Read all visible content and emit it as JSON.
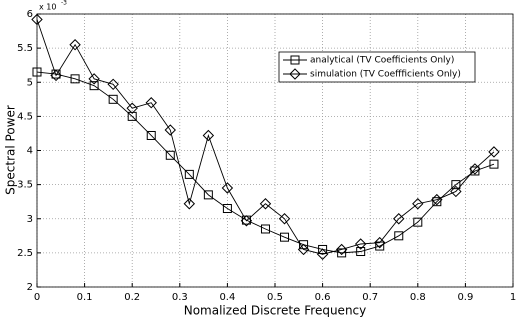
{
  "chart_data": {
    "type": "line",
    "x_label": "Nomalized Discrete Frequency",
    "y_label": "Spectral Power",
    "y_multiplier": {
      "base": "x 10",
      "exponent": "-3"
    },
    "x": [
      0,
      0.04,
      0.08,
      0.12,
      0.16,
      0.2,
      0.24,
      0.28,
      0.32,
      0.36,
      0.4,
      0.44,
      0.48,
      0.52,
      0.56,
      0.6,
      0.64,
      0.68,
      0.72,
      0.76,
      0.8,
      0.84,
      0.88,
      0.92,
      0.96
    ],
    "series": [
      {
        "name": "analytical (TV Coefficients Only)",
        "color": "#000000",
        "marker": "square",
        "values": [
          5.15,
          5.12,
          5.05,
          4.95,
          4.75,
          4.5,
          4.22,
          3.93,
          3.65,
          3.35,
          3.15,
          2.98,
          2.85,
          2.73,
          2.62,
          2.55,
          2.5,
          2.52,
          2.6,
          2.75,
          2.95,
          3.25,
          3.5,
          3.7,
          3.8
        ]
      },
      {
        "name": "simulation (TV Coeffficients Only)",
        "color": "#000000",
        "marker": "diamond",
        "values": [
          5.92,
          5.1,
          5.55,
          5.05,
          4.97,
          4.62,
          4.7,
          4.3,
          3.22,
          4.22,
          3.45,
          2.97,
          3.22,
          3.0,
          2.55,
          2.48,
          2.55,
          2.63,
          2.65,
          3.0,
          3.22,
          3.28,
          3.4,
          3.73,
          3.98
        ]
      }
    ],
    "xlim": [
      0,
      1
    ],
    "xticks": [
      0,
      0.1,
      0.2,
      0.3,
      0.4,
      0.5,
      0.6,
      0.7,
      0.8,
      0.9,
      1
    ],
    "ylim": [
      2,
      6
    ],
    "yticks": [
      2,
      2.5,
      3,
      3.5,
      4,
      4.5,
      5,
      5.5,
      6
    ],
    "grid": true,
    "legend_position": "upper-right"
  }
}
